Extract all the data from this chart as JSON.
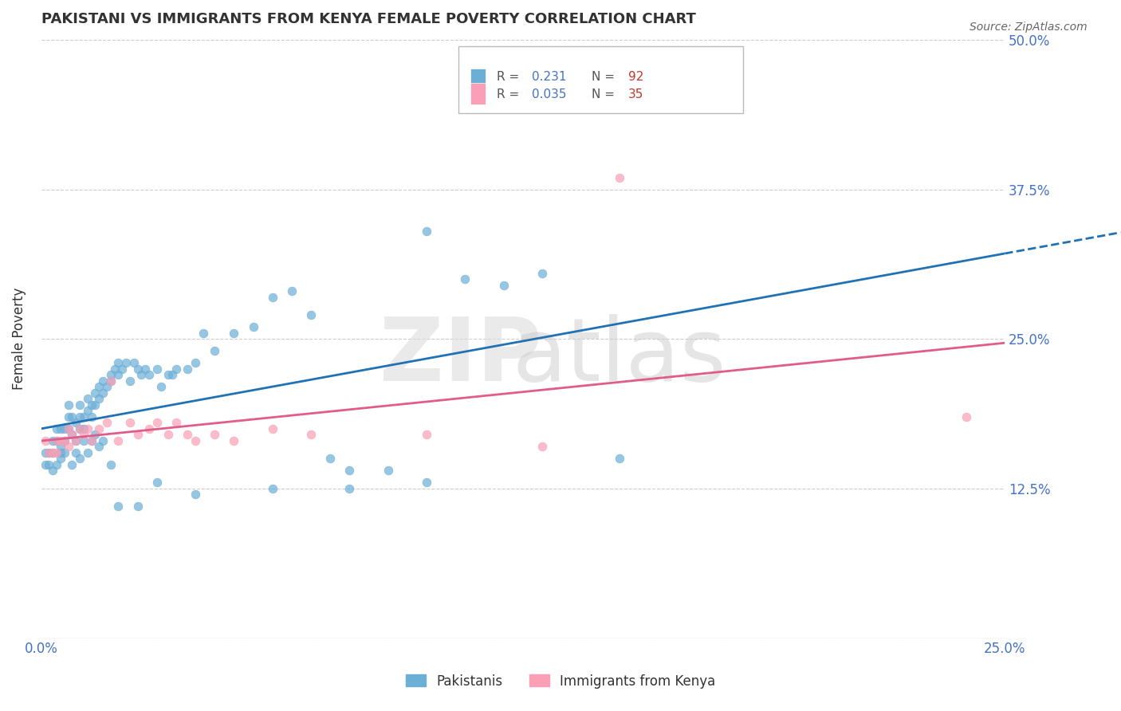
{
  "title": "PAKISTANI VS IMMIGRANTS FROM KENYA FEMALE POVERTY CORRELATION CHART",
  "source": "Source: ZipAtlas.com",
  "ylabel": "Female Poverty",
  "xlim": [
    0.0,
    0.25
  ],
  "ylim": [
    0.0,
    0.5
  ],
  "xticks": [
    0.0,
    0.025,
    0.05,
    0.075,
    0.1,
    0.125,
    0.15,
    0.175,
    0.2,
    0.225,
    0.25
  ],
  "xtick_labels": [
    "0.0%",
    "",
    "",
    "",
    "",
    "",
    "",
    "",
    "",
    "",
    "25.0%"
  ],
  "ytick_positions": [
    0.0,
    0.125,
    0.25,
    0.375,
    0.5
  ],
  "ytick_labels": [
    "",
    "12.5%",
    "25.0%",
    "37.5%",
    "50.0%"
  ],
  "pakistani_R": 0.231,
  "pakistani_N": 92,
  "kenya_R": 0.035,
  "kenya_N": 35,
  "pakistani_color": "#6baed6",
  "kenya_color": "#fa9fb5",
  "pakistani_line_color": "#2171b5",
  "kenya_line_color": "#e05c8a",
  "pakistani_x": [
    0.001,
    0.002,
    0.003,
    0.003,
    0.004,
    0.004,
    0.005,
    0.005,
    0.005,
    0.006,
    0.006,
    0.007,
    0.007,
    0.007,
    0.008,
    0.008,
    0.009,
    0.009,
    0.01,
    0.01,
    0.01,
    0.011,
    0.011,
    0.012,
    0.012,
    0.013,
    0.013,
    0.014,
    0.014,
    0.015,
    0.015,
    0.016,
    0.016,
    0.017,
    0.018,
    0.018,
    0.019,
    0.02,
    0.02,
    0.021,
    0.022,
    0.023,
    0.024,
    0.025,
    0.026,
    0.027,
    0.028,
    0.03,
    0.031,
    0.033,
    0.034,
    0.035,
    0.038,
    0.04,
    0.042,
    0.045,
    0.05,
    0.055,
    0.06,
    0.065,
    0.07,
    0.075,
    0.08,
    0.09,
    0.1,
    0.11,
    0.12,
    0.13,
    0.15,
    0.001,
    0.002,
    0.003,
    0.004,
    0.005,
    0.006,
    0.008,
    0.009,
    0.01,
    0.011,
    0.012,
    0.013,
    0.014,
    0.015,
    0.016,
    0.018,
    0.02,
    0.025,
    0.03,
    0.04,
    0.06,
    0.08,
    0.1
  ],
  "pakistani_y": [
    0.155,
    0.155,
    0.155,
    0.165,
    0.165,
    0.175,
    0.16,
    0.175,
    0.155,
    0.165,
    0.175,
    0.195,
    0.185,
    0.175,
    0.17,
    0.185,
    0.165,
    0.18,
    0.175,
    0.185,
    0.195,
    0.185,
    0.175,
    0.19,
    0.2,
    0.195,
    0.185,
    0.195,
    0.205,
    0.2,
    0.21,
    0.205,
    0.215,
    0.21,
    0.22,
    0.215,
    0.225,
    0.22,
    0.23,
    0.225,
    0.23,
    0.215,
    0.23,
    0.225,
    0.22,
    0.225,
    0.22,
    0.225,
    0.21,
    0.22,
    0.22,
    0.225,
    0.225,
    0.23,
    0.255,
    0.24,
    0.255,
    0.26,
    0.285,
    0.29,
    0.27,
    0.15,
    0.14,
    0.14,
    0.34,
    0.3,
    0.295,
    0.305,
    0.15,
    0.145,
    0.145,
    0.14,
    0.145,
    0.15,
    0.155,
    0.145,
    0.155,
    0.15,
    0.165,
    0.155,
    0.165,
    0.17,
    0.16,
    0.165,
    0.145,
    0.11,
    0.11,
    0.13,
    0.12,
    0.125,
    0.125,
    0.13
  ],
  "kenya_x": [
    0.001,
    0.002,
    0.003,
    0.004,
    0.004,
    0.005,
    0.006,
    0.007,
    0.007,
    0.008,
    0.009,
    0.01,
    0.011,
    0.012,
    0.013,
    0.015,
    0.017,
    0.018,
    0.02,
    0.023,
    0.025,
    0.028,
    0.03,
    0.033,
    0.035,
    0.038,
    0.04,
    0.045,
    0.05,
    0.06,
    0.07,
    0.1,
    0.13,
    0.15,
    0.24
  ],
  "kenya_y": [
    0.165,
    0.155,
    0.155,
    0.165,
    0.155,
    0.165,
    0.165,
    0.16,
    0.175,
    0.17,
    0.165,
    0.175,
    0.17,
    0.175,
    0.165,
    0.175,
    0.18,
    0.215,
    0.165,
    0.18,
    0.17,
    0.175,
    0.18,
    0.17,
    0.18,
    0.17,
    0.165,
    0.17,
    0.165,
    0.175,
    0.17,
    0.17,
    0.16,
    0.385,
    0.185
  ]
}
